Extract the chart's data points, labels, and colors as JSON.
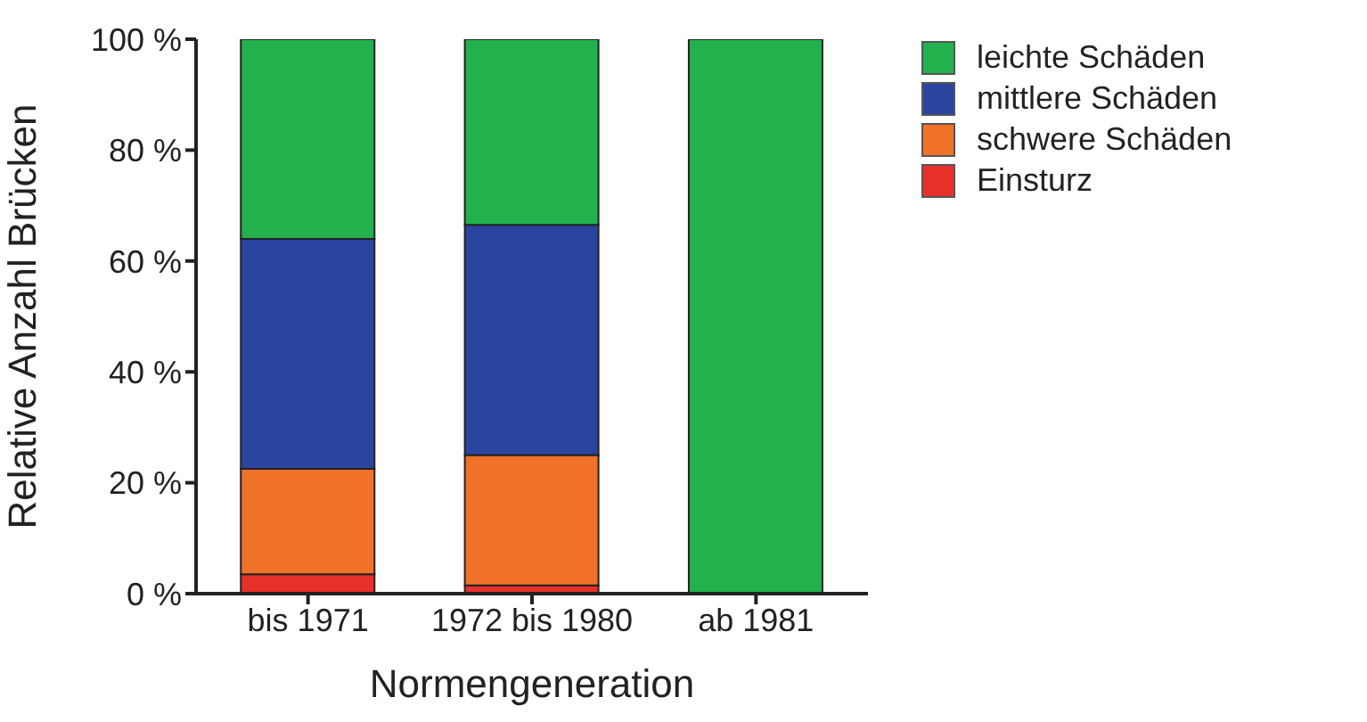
{
  "chart_data": {
    "type": "bar",
    "stacked": true,
    "xlabel": "Normengeneration",
    "ylabel": "Relative Anzahl Brücken",
    "categories": [
      "bis 1971",
      "1972 bis 1980",
      "ab 1981"
    ],
    "series": [
      {
        "name": "Einsturz",
        "color": "#e8302a",
        "values": [
          3.5,
          1.5,
          0
        ]
      },
      {
        "name": "schwere Schäden",
        "color": "#f07228",
        "values": [
          19,
          23.5,
          0
        ]
      },
      {
        "name": "mittlere Schäden",
        "color": "#2a44a0",
        "values": [
          41.5,
          41.5,
          0
        ]
      },
      {
        "name": "leichte Schäden",
        "color": "#22b14c",
        "values": [
          36,
          33.5,
          100
        ]
      }
    ],
    "ylim": [
      0,
      100
    ],
    "yticks": [
      {
        "value": 0,
        "label": "0 %"
      },
      {
        "value": 20,
        "label": "20 %"
      },
      {
        "value": 40,
        "label": "40 %"
      },
      {
        "value": 60,
        "label": "60 %"
      },
      {
        "value": 80,
        "label": "80 %"
      },
      {
        "value": 100,
        "label": "100 %"
      }
    ],
    "grid": false,
    "legend": "right"
  }
}
